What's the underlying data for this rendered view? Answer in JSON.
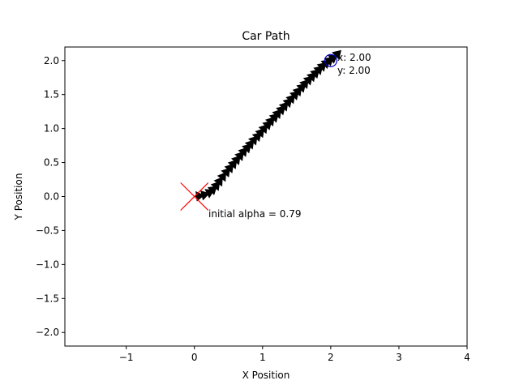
{
  "chart_data": {
    "type": "scatter",
    "title": "Car Path",
    "xlabel": "X Position",
    "ylabel": "Y Position",
    "xlim": [
      -1.9,
      4.0
    ],
    "ylim": [
      -2.2,
      2.2
    ],
    "xticks": [
      -1,
      0,
      1,
      2,
      3,
      4
    ],
    "xtick_labels": [
      "−1",
      "0",
      "1",
      "2",
      "3",
      "4"
    ],
    "yticks": [
      -2.0,
      -1.5,
      -1.0,
      -0.5,
      0.0,
      0.5,
      1.0,
      1.5,
      2.0
    ],
    "ytick_labels": [
      "−2.0",
      "−1.5",
      "−1.0",
      "−0.5",
      "0.0",
      "0.5",
      "1.0",
      "1.5",
      "2.0"
    ],
    "grid": false,
    "path": {
      "color": "#000000",
      "marker": "arrow",
      "points": [
        [
          0.0,
          0.0
        ],
        [
          0.08,
          0.01
        ],
        [
          0.16,
          0.03
        ],
        [
          0.22,
          0.06
        ],
        [
          0.28,
          0.11
        ],
        [
          0.33,
          0.17
        ],
        [
          0.38,
          0.24
        ],
        [
          0.43,
          0.31
        ],
        [
          0.48,
          0.37
        ],
        [
          0.53,
          0.43
        ],
        [
          0.58,
          0.49
        ],
        [
          0.63,
          0.55
        ],
        [
          0.68,
          0.61
        ],
        [
          0.73,
          0.67
        ],
        [
          0.78,
          0.72
        ],
        [
          0.83,
          0.78
        ],
        [
          0.88,
          0.84
        ],
        [
          0.93,
          0.89
        ],
        [
          0.98,
          0.95
        ],
        [
          1.03,
          1.01
        ],
        [
          1.08,
          1.06
        ],
        [
          1.13,
          1.12
        ],
        [
          1.18,
          1.17
        ],
        [
          1.23,
          1.23
        ],
        [
          1.28,
          1.28
        ],
        [
          1.33,
          1.34
        ],
        [
          1.38,
          1.39
        ],
        [
          1.43,
          1.45
        ],
        [
          1.48,
          1.5
        ],
        [
          1.53,
          1.56
        ],
        [
          1.58,
          1.61
        ],
        [
          1.63,
          1.67
        ],
        [
          1.68,
          1.72
        ],
        [
          1.73,
          1.77
        ],
        [
          1.78,
          1.82
        ],
        [
          1.83,
          1.87
        ],
        [
          1.88,
          1.92
        ],
        [
          1.93,
          1.96
        ],
        [
          1.98,
          2.0
        ],
        [
          2.05,
          2.05
        ],
        [
          2.1,
          2.1
        ]
      ]
    },
    "start_marker": {
      "x": 0.0,
      "y": 0.0,
      "shape": "x",
      "color": "#ff0000"
    },
    "goal_marker": {
      "x": 2.0,
      "y": 2.0,
      "shape": "circle",
      "color": "#0000cc"
    },
    "annotations": {
      "goal_x": "x: 2.00",
      "goal_y": "y: 2.00",
      "alpha": "initial alpha = 0.79"
    }
  }
}
